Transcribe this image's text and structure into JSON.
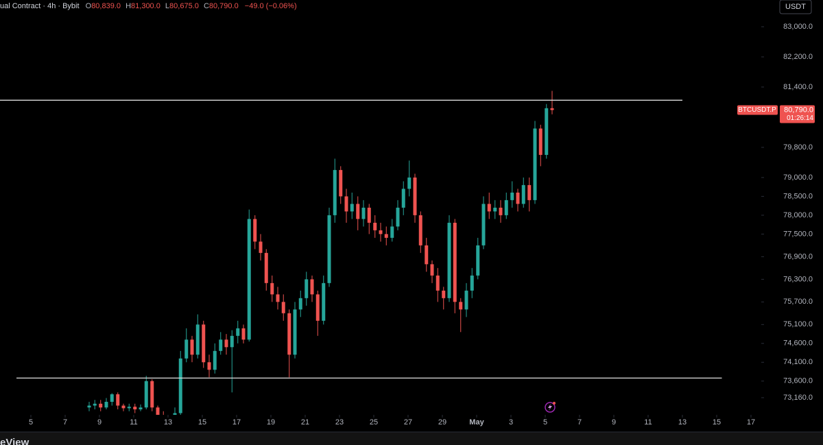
{
  "header": {
    "source": "ual Contract · 4h · Bybit",
    "ohlc": [
      {
        "label": "O",
        "value": "80,839.0"
      },
      {
        "label": "H",
        "value": "81,300.0"
      },
      {
        "label": "L",
        "value": "80,675.0"
      },
      {
        "label": "C",
        "value": "80,790.0"
      }
    ],
    "change": "−49.0 (−0.06%)"
  },
  "currency_button": "USDT",
  "footer": "eView",
  "chart_data": {
    "type": "candlestick",
    "up_color": "#26a69a",
    "down_color": "#ef5350",
    "x": [
      3.4,
      3.73,
      4.07,
      4.4,
      4.73,
      5.07,
      5.4,
      5.73,
      6.07,
      6.4,
      6.73,
      7.07,
      7.4,
      7.73,
      8.07,
      8.4,
      8.73,
      9.07,
      9.4,
      9.73,
      10.07,
      10.4,
      10.73,
      11.07,
      11.4,
      11.73,
      12.07,
      12.4,
      12.73,
      13.07,
      13.4,
      13.73,
      14.07,
      14.4,
      14.73,
      15.07,
      15.4,
      15.73,
      16.07,
      16.4,
      16.73,
      17.07,
      17.4,
      17.73,
      18.07,
      18.4,
      18.73,
      19.07,
      19.4,
      19.73,
      20.07,
      20.4,
      20.73,
      21.07,
      21.4,
      21.73,
      22.07,
      22.4,
      22.73,
      23.07,
      23.4,
      23.73,
      24.07,
      24.4,
      24.73,
      25.07,
      25.4,
      25.73,
      26.07,
      26.4,
      26.73,
      27.07,
      27.4,
      27.73,
      28.07,
      28.4,
      28.73,
      29.07,
      29.4,
      29.73,
      30.07,
      30.4
    ],
    "open": [
      72900,
      72950,
      73000,
      72900,
      73050,
      73250,
      72950,
      72880,
      72920,
      72850,
      72900,
      73600,
      72900,
      72700,
      72650,
      72600,
      72750,
      74200,
      74700,
      74300,
      75100,
      74100,
      73900,
      74400,
      74700,
      74500,
      74800,
      75000,
      74700,
      77900,
      77300,
      77000,
      76200,
      75900,
      75700,
      75400,
      74300,
      75500,
      75800,
      76300,
      75900,
      75200,
      76200,
      78000,
      79200,
      78500,
      78100,
      78300,
      77900,
      78200,
      77800,
      77600,
      77500,
      77400,
      77700,
      78200,
      78700,
      79000,
      78000,
      77200,
      76700,
      76400,
      76000,
      75800,
      77800,
      75700,
      75500,
      76000,
      76400,
      77200,
      78300,
      78100,
      78200,
      78000,
      78400,
      78600,
      78300,
      78800,
      78400,
      80300,
      79600,
      80839
    ],
    "high": [
      73050,
      73100,
      73100,
      73150,
      73280,
      73300,
      73000,
      73000,
      73000,
      72980,
      73740,
      73650,
      72950,
      72800,
      72700,
      72900,
      74400,
      75000,
      74800,
      75370,
      75200,
      74300,
      74600,
      74900,
      74850,
      74950,
      75200,
      75100,
      78150,
      78000,
      77500,
      77100,
      76400,
      76100,
      75900,
      75500,
      75700,
      76000,
      76500,
      76400,
      76000,
      76400,
      78200,
      79500,
      79300,
      78700,
      78600,
      78500,
      78400,
      78300,
      78000,
      77800,
      77700,
      77900,
      78400,
      78900,
      79450,
      79100,
      78100,
      77400,
      76800,
      76600,
      76100,
      78000,
      77900,
      75800,
      76200,
      76600,
      77400,
      78500,
      78600,
      78400,
      78400,
      78600,
      78900,
      78700,
      79000,
      79000,
      80500,
      80400,
      80950,
      81300
    ],
    "low": [
      72800,
      72850,
      72800,
      72850,
      72950,
      72850,
      72800,
      72800,
      72750,
      72800,
      72850,
      72800,
      72600,
      72550,
      72500,
      72550,
      72700,
      74100,
      74100,
      74200,
      73950,
      73700,
      73800,
      74300,
      74300,
      73300,
      74600,
      74600,
      74650,
      77100,
      76800,
      76000,
      75700,
      75500,
      75200,
      73700,
      74200,
      75300,
      75600,
      75700,
      74800,
      75100,
      76100,
      77800,
      78300,
      77800,
      77900,
      77600,
      77700,
      77500,
      77400,
      77300,
      77200,
      77300,
      77600,
      78000,
      78500,
      77800,
      77000,
      76500,
      76200,
      75700,
      75500,
      75700,
      75400,
      74900,
      75300,
      75800,
      76300,
      77100,
      77900,
      77900,
      77800,
      77900,
      78200,
      78100,
      78200,
      78100,
      78300,
      79300,
      79500,
      80675
    ],
    "close": [
      72950,
      73000,
      72900,
      73050,
      73250,
      72950,
      72880,
      72920,
      72850,
      72900,
      73600,
      72900,
      72700,
      72650,
      72600,
      72750,
      74200,
      74700,
      74300,
      75100,
      74100,
      73900,
      74400,
      74700,
      74500,
      74800,
      75000,
      74700,
      77900,
      77300,
      77000,
      76200,
      75900,
      75700,
      75400,
      74300,
      75500,
      75800,
      76300,
      75900,
      75200,
      76200,
      78000,
      79200,
      78500,
      78100,
      78300,
      77900,
      78200,
      77800,
      77600,
      77500,
      77400,
      77700,
      78200,
      78700,
      79000,
      78000,
      77200,
      76700,
      76400,
      76000,
      75800,
      77800,
      75700,
      75500,
      76000,
      76400,
      77200,
      78300,
      78100,
      78200,
      78000,
      78400,
      78600,
      78300,
      78800,
      78400,
      80300,
      79600,
      80839,
      80790
    ],
    "xlim": [
      -1.8,
      42.6
    ],
    "xticks": [
      {
        "value": 0,
        "label": "5"
      },
      {
        "value": 2,
        "label": "7"
      },
      {
        "value": 4,
        "label": "9"
      },
      {
        "value": 6,
        "label": "11"
      },
      {
        "value": 8,
        "label": "13"
      },
      {
        "value": 10,
        "label": "15"
      },
      {
        "value": 12,
        "label": "17"
      },
      {
        "value": 14,
        "label": "19"
      },
      {
        "value": 16,
        "label": "21"
      },
      {
        "value": 18,
        "label": "23"
      },
      {
        "value": 20,
        "label": "25"
      },
      {
        "value": 22,
        "label": "27"
      },
      {
        "value": 24,
        "label": "29"
      },
      {
        "value": 26,
        "label": "May"
      },
      {
        "value": 28,
        "label": "3"
      },
      {
        "value": 30,
        "label": "5"
      },
      {
        "value": 32,
        "label": "7"
      },
      {
        "value": 34,
        "label": "9"
      },
      {
        "value": 36,
        "label": "11"
      },
      {
        "value": 38,
        "label": "13"
      },
      {
        "value": 40,
        "label": "15"
      },
      {
        "value": 42,
        "label": "17"
      }
    ],
    "ylim": [
      72705,
      83709
    ],
    "yticks": [
      {
        "value": 83000,
        "label": "83,000.0"
      },
      {
        "value": 82200,
        "label": "82,200.0"
      },
      {
        "value": 81400,
        "label": "81,400.0"
      },
      {
        "value": 79800,
        "label": "79,800.0"
      },
      {
        "value": 79000,
        "label": "79,000.0"
      },
      {
        "value": 78500,
        "label": "78,500.0"
      },
      {
        "value": 78000,
        "label": "78,000.0"
      },
      {
        "value": 77500,
        "label": "77,500.0"
      },
      {
        "value": 76900,
        "label": "76,900.0"
      },
      {
        "value": 76300,
        "label": "76,300.0"
      },
      {
        "value": 75700,
        "label": "75,700.0"
      },
      {
        "value": 75100,
        "label": "75,100.0"
      },
      {
        "value": 74600,
        "label": "74,600.0"
      },
      {
        "value": 74100,
        "label": "74,100.0"
      },
      {
        "value": 73600,
        "label": "73,600.0"
      },
      {
        "value": 73160,
        "label": "73,160.0"
      }
    ],
    "levels": [
      {
        "value": 81050,
        "x": [
          -1.8,
          38
        ]
      },
      {
        "value": 73680,
        "x": [
          -0.84,
          40.3
        ]
      }
    ],
    "price_tag": {
      "symbol": "BTCUSDT.P",
      "value": 80790,
      "label": "80,790.0",
      "countdown": "01:26:14"
    }
  }
}
